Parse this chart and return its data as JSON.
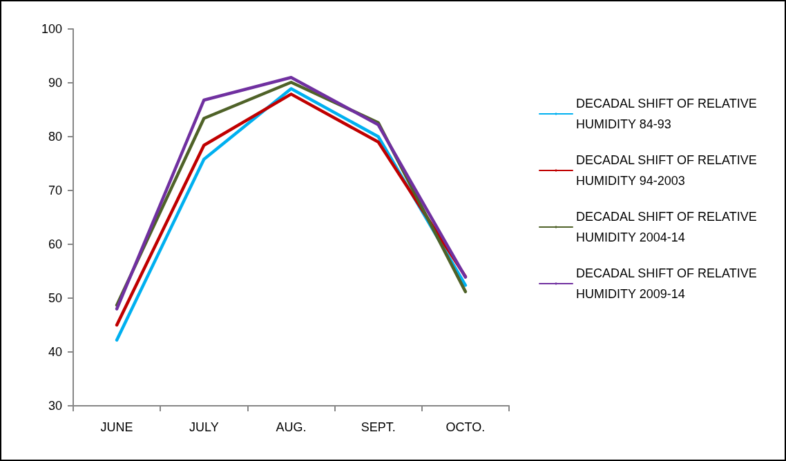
{
  "chart_data": {
    "type": "line",
    "categories": [
      "JUNE",
      "JULY",
      "AUG.",
      "SEPT.",
      "OCTO."
    ],
    "series": [
      {
        "name": "DECADAL SHIFT OF RELATIVE HUMIDITY 84-93",
        "color": "#00b0f0",
        "values": [
          42.2,
          75.8,
          88.9,
          80.0,
          52.4
        ]
      },
      {
        "name": "DECADAL SHIFT OF RELATIVE HUMIDITY 94-2003",
        "color": "#c00000",
        "values": [
          45.0,
          78.4,
          87.9,
          79.0,
          54.0
        ]
      },
      {
        "name": "DECADAL SHIFT OF RELATIVE HUMIDITY 2004-14",
        "color": "#4f6228",
        "values": [
          48.7,
          83.4,
          90.1,
          82.6,
          51.2
        ]
      },
      {
        "name": "DECADAL SHIFT OF RELATIVE HUMIDITY 2009-14",
        "color": "#7030a0",
        "values": [
          48.0,
          86.8,
          91.0,
          82.2,
          53.9
        ]
      }
    ],
    "ylim": [
      30,
      100
    ],
    "yticks": [
      30,
      40,
      50,
      60,
      70,
      80,
      90,
      100
    ],
    "grid": false,
    "legend": "right",
    "marker": "none",
    "line_style": "solid"
  }
}
